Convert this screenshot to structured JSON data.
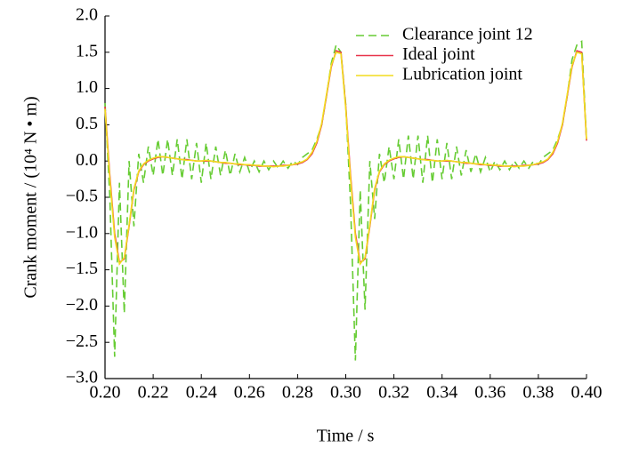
{
  "chart_data": {
    "type": "line",
    "x_label": "Time / s",
    "y_label": "Crank moment / (10⁴ N • m)",
    "x": [
      0.2,
      0.202,
      0.204,
      0.206,
      0.208,
      0.21,
      0.212,
      0.214,
      0.216,
      0.218,
      0.22,
      0.222,
      0.224,
      0.226,
      0.228,
      0.23,
      0.232,
      0.234,
      0.236,
      0.238,
      0.24,
      0.242,
      0.244,
      0.246,
      0.248,
      0.25,
      0.252,
      0.254,
      0.256,
      0.258,
      0.26,
      0.262,
      0.264,
      0.266,
      0.268,
      0.27,
      0.272,
      0.274,
      0.276,
      0.278,
      0.28,
      0.282,
      0.284,
      0.286,
      0.288,
      0.29,
      0.292,
      0.294,
      0.296,
      0.298,
      0.3,
      0.302,
      0.304,
      0.306,
      0.308,
      0.31,
      0.312,
      0.314,
      0.316,
      0.318,
      0.32,
      0.322,
      0.324,
      0.326,
      0.328,
      0.33,
      0.332,
      0.334,
      0.336,
      0.338,
      0.34,
      0.342,
      0.344,
      0.346,
      0.348,
      0.35,
      0.352,
      0.354,
      0.356,
      0.358,
      0.36,
      0.362,
      0.364,
      0.366,
      0.368,
      0.37,
      0.372,
      0.374,
      0.376,
      0.378,
      0.38,
      0.382,
      0.384,
      0.386,
      0.388,
      0.39,
      0.392,
      0.394,
      0.396,
      0.398,
      0.4
    ],
    "series": [
      {
        "name": "Clearance joint 12",
        "color": "#66cc33",
        "line_style": "dashed",
        "values": [
          0.8,
          -0.5,
          -2.7,
          -0.3,
          -2.1,
          0.0,
          -0.9,
          0.1,
          -0.3,
          0.2,
          -0.2,
          0.3,
          -0.2,
          0.3,
          -0.2,
          0.3,
          -0.25,
          0.3,
          -0.25,
          0.25,
          -0.3,
          0.25,
          -0.25,
          0.2,
          -0.2,
          0.15,
          -0.2,
          0.1,
          -0.15,
          0.05,
          -0.15,
          0.0,
          -0.15,
          0.0,
          -0.12,
          0.0,
          -0.1,
          0.0,
          -0.1,
          0.0,
          -0.05,
          0.05,
          0.1,
          0.15,
          0.3,
          0.5,
          0.9,
          1.35,
          1.6,
          1.5,
          0.78,
          -0.6,
          -2.75,
          -0.4,
          -2.05,
          0.0,
          -0.8,
          0.1,
          -0.3,
          0.2,
          -0.25,
          0.3,
          -0.25,
          0.35,
          -0.25,
          0.35,
          -0.3,
          0.35,
          -0.3,
          0.3,
          -0.25,
          0.25,
          -0.25,
          0.2,
          -0.2,
          0.15,
          -0.15,
          0.1,
          -0.15,
          0.05,
          -0.15,
          0.0,
          -0.12,
          0.0,
          -0.12,
          0.0,
          -0.1,
          0.0,
          -0.1,
          0.0,
          -0.05,
          0.05,
          0.1,
          0.15,
          0.3,
          0.5,
          0.9,
          1.4,
          1.6,
          1.65,
          0.3
        ]
      },
      {
        "name": "Ideal joint",
        "color": "#e8344a",
        "line_style": "solid",
        "values": [
          0.75,
          -0.2,
          -1.0,
          -1.4,
          -1.35,
          -0.9,
          -0.4,
          -0.15,
          -0.05,
          0.0,
          0.03,
          0.05,
          0.06,
          0.05,
          0.04,
          0.03,
          0.02,
          0.02,
          0.01,
          0.0,
          0.0,
          0.0,
          0.0,
          -0.01,
          -0.02,
          -0.03,
          -0.03,
          -0.04,
          -0.05,
          -0.05,
          -0.06,
          -0.06,
          -0.07,
          -0.07,
          -0.07,
          -0.07,
          -0.07,
          -0.06,
          -0.06,
          -0.05,
          -0.04,
          -0.02,
          0.02,
          0.1,
          0.25,
          0.5,
          0.9,
          1.3,
          1.52,
          1.5,
          0.75,
          -0.2,
          -1.0,
          -1.4,
          -1.35,
          -0.9,
          -0.4,
          -0.15,
          -0.05,
          0.0,
          0.03,
          0.05,
          0.06,
          0.05,
          0.04,
          0.03,
          0.02,
          0.02,
          0.01,
          0.0,
          0.0,
          0.0,
          0.0,
          -0.01,
          -0.02,
          -0.03,
          -0.03,
          -0.04,
          -0.05,
          -0.05,
          -0.06,
          -0.06,
          -0.07,
          -0.07,
          -0.07,
          -0.07,
          -0.07,
          -0.06,
          -0.06,
          -0.05,
          -0.04,
          -0.02,
          0.02,
          0.1,
          0.25,
          0.5,
          0.9,
          1.3,
          1.52,
          1.5,
          0.28
        ]
      },
      {
        "name": "Lubrication joint",
        "color": "#f2dc1e",
        "line_style": "solid",
        "values": [
          0.72,
          -0.25,
          -1.05,
          -1.42,
          -1.33,
          -0.88,
          -0.38,
          -0.14,
          -0.04,
          0.01,
          0.04,
          0.06,
          0.06,
          0.05,
          0.04,
          0.03,
          0.02,
          0.01,
          0.01,
          0.0,
          0.0,
          0.01,
          0.0,
          -0.01,
          -0.02,
          -0.02,
          -0.03,
          -0.04,
          -0.04,
          -0.05,
          -0.05,
          -0.06,
          -0.06,
          -0.07,
          -0.07,
          -0.08,
          -0.07,
          -0.07,
          -0.06,
          -0.05,
          -0.03,
          -0.01,
          0.03,
          0.12,
          0.27,
          0.52,
          0.92,
          1.32,
          1.5,
          1.48,
          0.72,
          -0.25,
          -1.05,
          -1.42,
          -1.33,
          -0.88,
          -0.38,
          -0.14,
          -0.04,
          0.01,
          0.04,
          0.06,
          0.06,
          0.05,
          0.04,
          0.03,
          0.02,
          0.01,
          0.01,
          0.0,
          0.0,
          0.01,
          0.0,
          -0.01,
          -0.02,
          -0.02,
          -0.03,
          -0.04,
          -0.04,
          -0.05,
          -0.05,
          -0.06,
          -0.06,
          -0.07,
          -0.07,
          -0.08,
          -0.07,
          -0.07,
          -0.06,
          -0.05,
          -0.03,
          -0.01,
          0.03,
          0.12,
          0.27,
          0.52,
          0.92,
          1.32,
          1.5,
          1.48,
          0.3
        ]
      }
    ],
    "xlim": [
      0.2,
      0.4
    ],
    "xticks": [
      {
        "value": 0.2,
        "label": "0.20"
      },
      {
        "value": 0.22,
        "label": "0.22"
      },
      {
        "value": 0.24,
        "label": "0.24"
      },
      {
        "value": 0.26,
        "label": "0.26"
      },
      {
        "value": 0.28,
        "label": "0.28"
      },
      {
        "value": 0.3,
        "label": "0.30"
      },
      {
        "value": 0.32,
        "label": "0.32"
      },
      {
        "value": 0.34,
        "label": "0.34"
      },
      {
        "value": 0.36,
        "label": "0.36"
      },
      {
        "value": 0.38,
        "label": "0.38"
      },
      {
        "value": 0.4,
        "label": "0.40"
      }
    ],
    "ylim": [
      -3.0,
      2.0
    ],
    "yticks": [
      {
        "value": -3.0,
        "label": "−3.0"
      },
      {
        "value": -2.5,
        "label": "−2.5"
      },
      {
        "value": -2.0,
        "label": "−2.0"
      },
      {
        "value": -1.5,
        "label": "−1.5"
      },
      {
        "value": -1.0,
        "label": "−1.0"
      },
      {
        "value": -0.5,
        "label": "−0.5"
      },
      {
        "value": 0.0,
        "label": "0.0"
      },
      {
        "value": 0.5,
        "label": "0.5"
      },
      {
        "value": 1.0,
        "label": "1.0"
      },
      {
        "value": 1.5,
        "label": "1.5"
      },
      {
        "value": 2.0,
        "label": "2.0"
      }
    ],
    "grid": false,
    "legend": "top-right"
  }
}
